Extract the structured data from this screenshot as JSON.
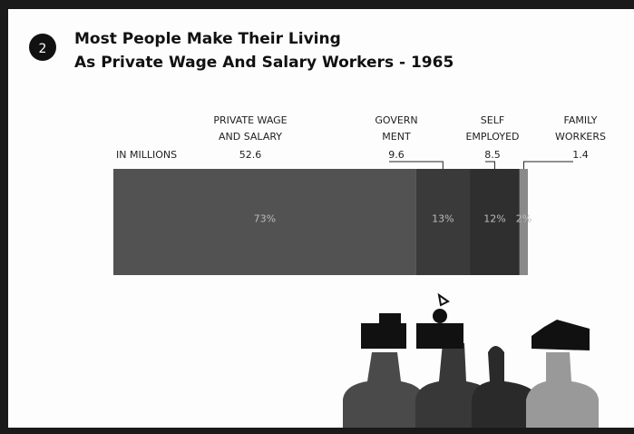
{
  "chart_data": {
    "type": "stacked-bar",
    "badge": "2",
    "title": [
      "Most People Make Their Living",
      "As Private Wage And Salary Workers - 1965"
    ],
    "unit_label": "IN MILLIONS",
    "xlim": [
      0,
      100
    ],
    "series": [
      {
        "label": [
          "PRIVATE WAGE",
          "AND SALARY"
        ],
        "millions": 52.6,
        "values": [
          73
        ],
        "value_labels": [
          "73%"
        ],
        "color": "#525252"
      },
      {
        "label": [
          "GOVERN",
          "MENT"
        ],
        "millions": 9.6,
        "values": [
          13
        ],
        "value_labels": [
          "13%"
        ],
        "color": "#3a3a3a"
      },
      {
        "label": [
          "SELF",
          "EMPLOYED"
        ],
        "millions": 8.5,
        "values": [
          12
        ],
        "value_labels": [
          "12%"
        ],
        "color": "#2f2f2f"
      },
      {
        "label": [
          "FAMILY",
          "WORKERS"
        ],
        "millions": 1.4,
        "values": [
          2
        ],
        "value_labels": [
          "2%"
        ],
        "color": "#8a8a8a"
      }
    ]
  }
}
